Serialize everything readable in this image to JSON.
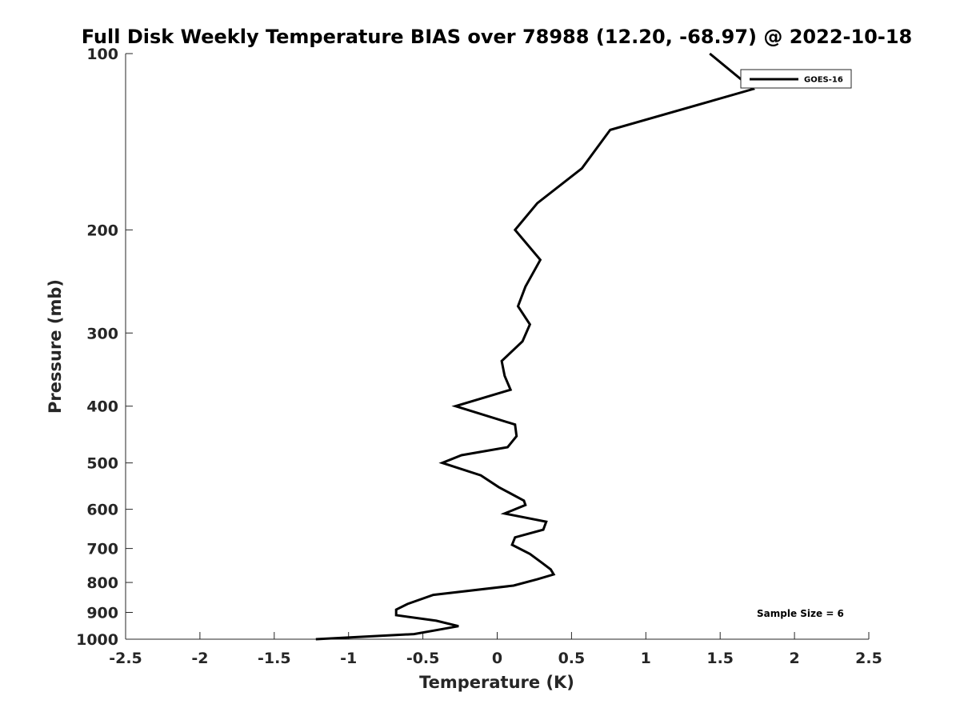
{
  "chart_data": {
    "type": "line",
    "title": "Full Disk Weekly Temperature BIAS over 78988 (12.20, -68.97) @ 2022-10-18",
    "xlabel": "Temperature (K)",
    "ylabel": "Pressure (mb)",
    "xlim": [
      -2.5,
      2.5
    ],
    "ylim": [
      100,
      1000
    ],
    "y_scale": "log",
    "y_reversed": true,
    "x_ticks": [
      -2.5,
      -2,
      -1.5,
      -1,
      -0.5,
      0,
      0.5,
      1,
      1.5,
      2,
      2.5
    ],
    "x_tick_labels": [
      "-2.5",
      "-2",
      "-1.5",
      "-1",
      "-0.5",
      "0",
      "0.5",
      "1",
      "1.5",
      "2",
      "2.5"
    ],
    "y_ticks": [
      100,
      200,
      300,
      400,
      500,
      600,
      700,
      800,
      900,
      1000
    ],
    "y_tick_labels": [
      "100",
      "200",
      "300",
      "400",
      "500",
      "600",
      "700",
      "800",
      "900",
      "1000"
    ],
    "grid": false,
    "legend_position": "top-right",
    "annotation": "Sample Size = 6",
    "series": [
      {
        "name": "GOES-16",
        "color": "#000000",
        "points": [
          [
            1.43,
            100
          ],
          [
            1.72,
            115
          ],
          [
            0.76,
            135
          ],
          [
            0.57,
            157
          ],
          [
            0.27,
            180
          ],
          [
            0.12,
            200
          ],
          [
            0.29,
            225
          ],
          [
            0.19,
            250
          ],
          [
            0.14,
            270
          ],
          [
            0.22,
            290
          ],
          [
            0.17,
            310
          ],
          [
            0.03,
            335
          ],
          [
            0.05,
            355
          ],
          [
            0.09,
            375
          ],
          [
            -0.28,
            400
          ],
          [
            0.12,
            430
          ],
          [
            0.13,
            450
          ],
          [
            0.07,
            470
          ],
          [
            -0.24,
            485
          ],
          [
            -0.37,
            500
          ],
          [
            -0.11,
            525
          ],
          [
            0.01,
            550
          ],
          [
            0.18,
            580
          ],
          [
            0.19,
            590
          ],
          [
            0.05,
            610
          ],
          [
            0.33,
            630
          ],
          [
            0.31,
            650
          ],
          [
            0.12,
            670
          ],
          [
            0.1,
            690
          ],
          [
            0.22,
            715
          ],
          [
            0.3,
            740
          ],
          [
            0.36,
            760
          ],
          [
            0.38,
            775
          ],
          [
            0.27,
            790
          ],
          [
            0.11,
            810
          ],
          [
            -0.43,
            840
          ],
          [
            -0.6,
            870
          ],
          [
            -0.68,
            890
          ],
          [
            -0.68,
            910
          ],
          [
            -0.41,
            930
          ],
          [
            -0.26,
            950
          ],
          [
            -0.41,
            965
          ],
          [
            -0.56,
            980
          ],
          [
            -1.22,
            1000
          ]
        ]
      }
    ]
  }
}
